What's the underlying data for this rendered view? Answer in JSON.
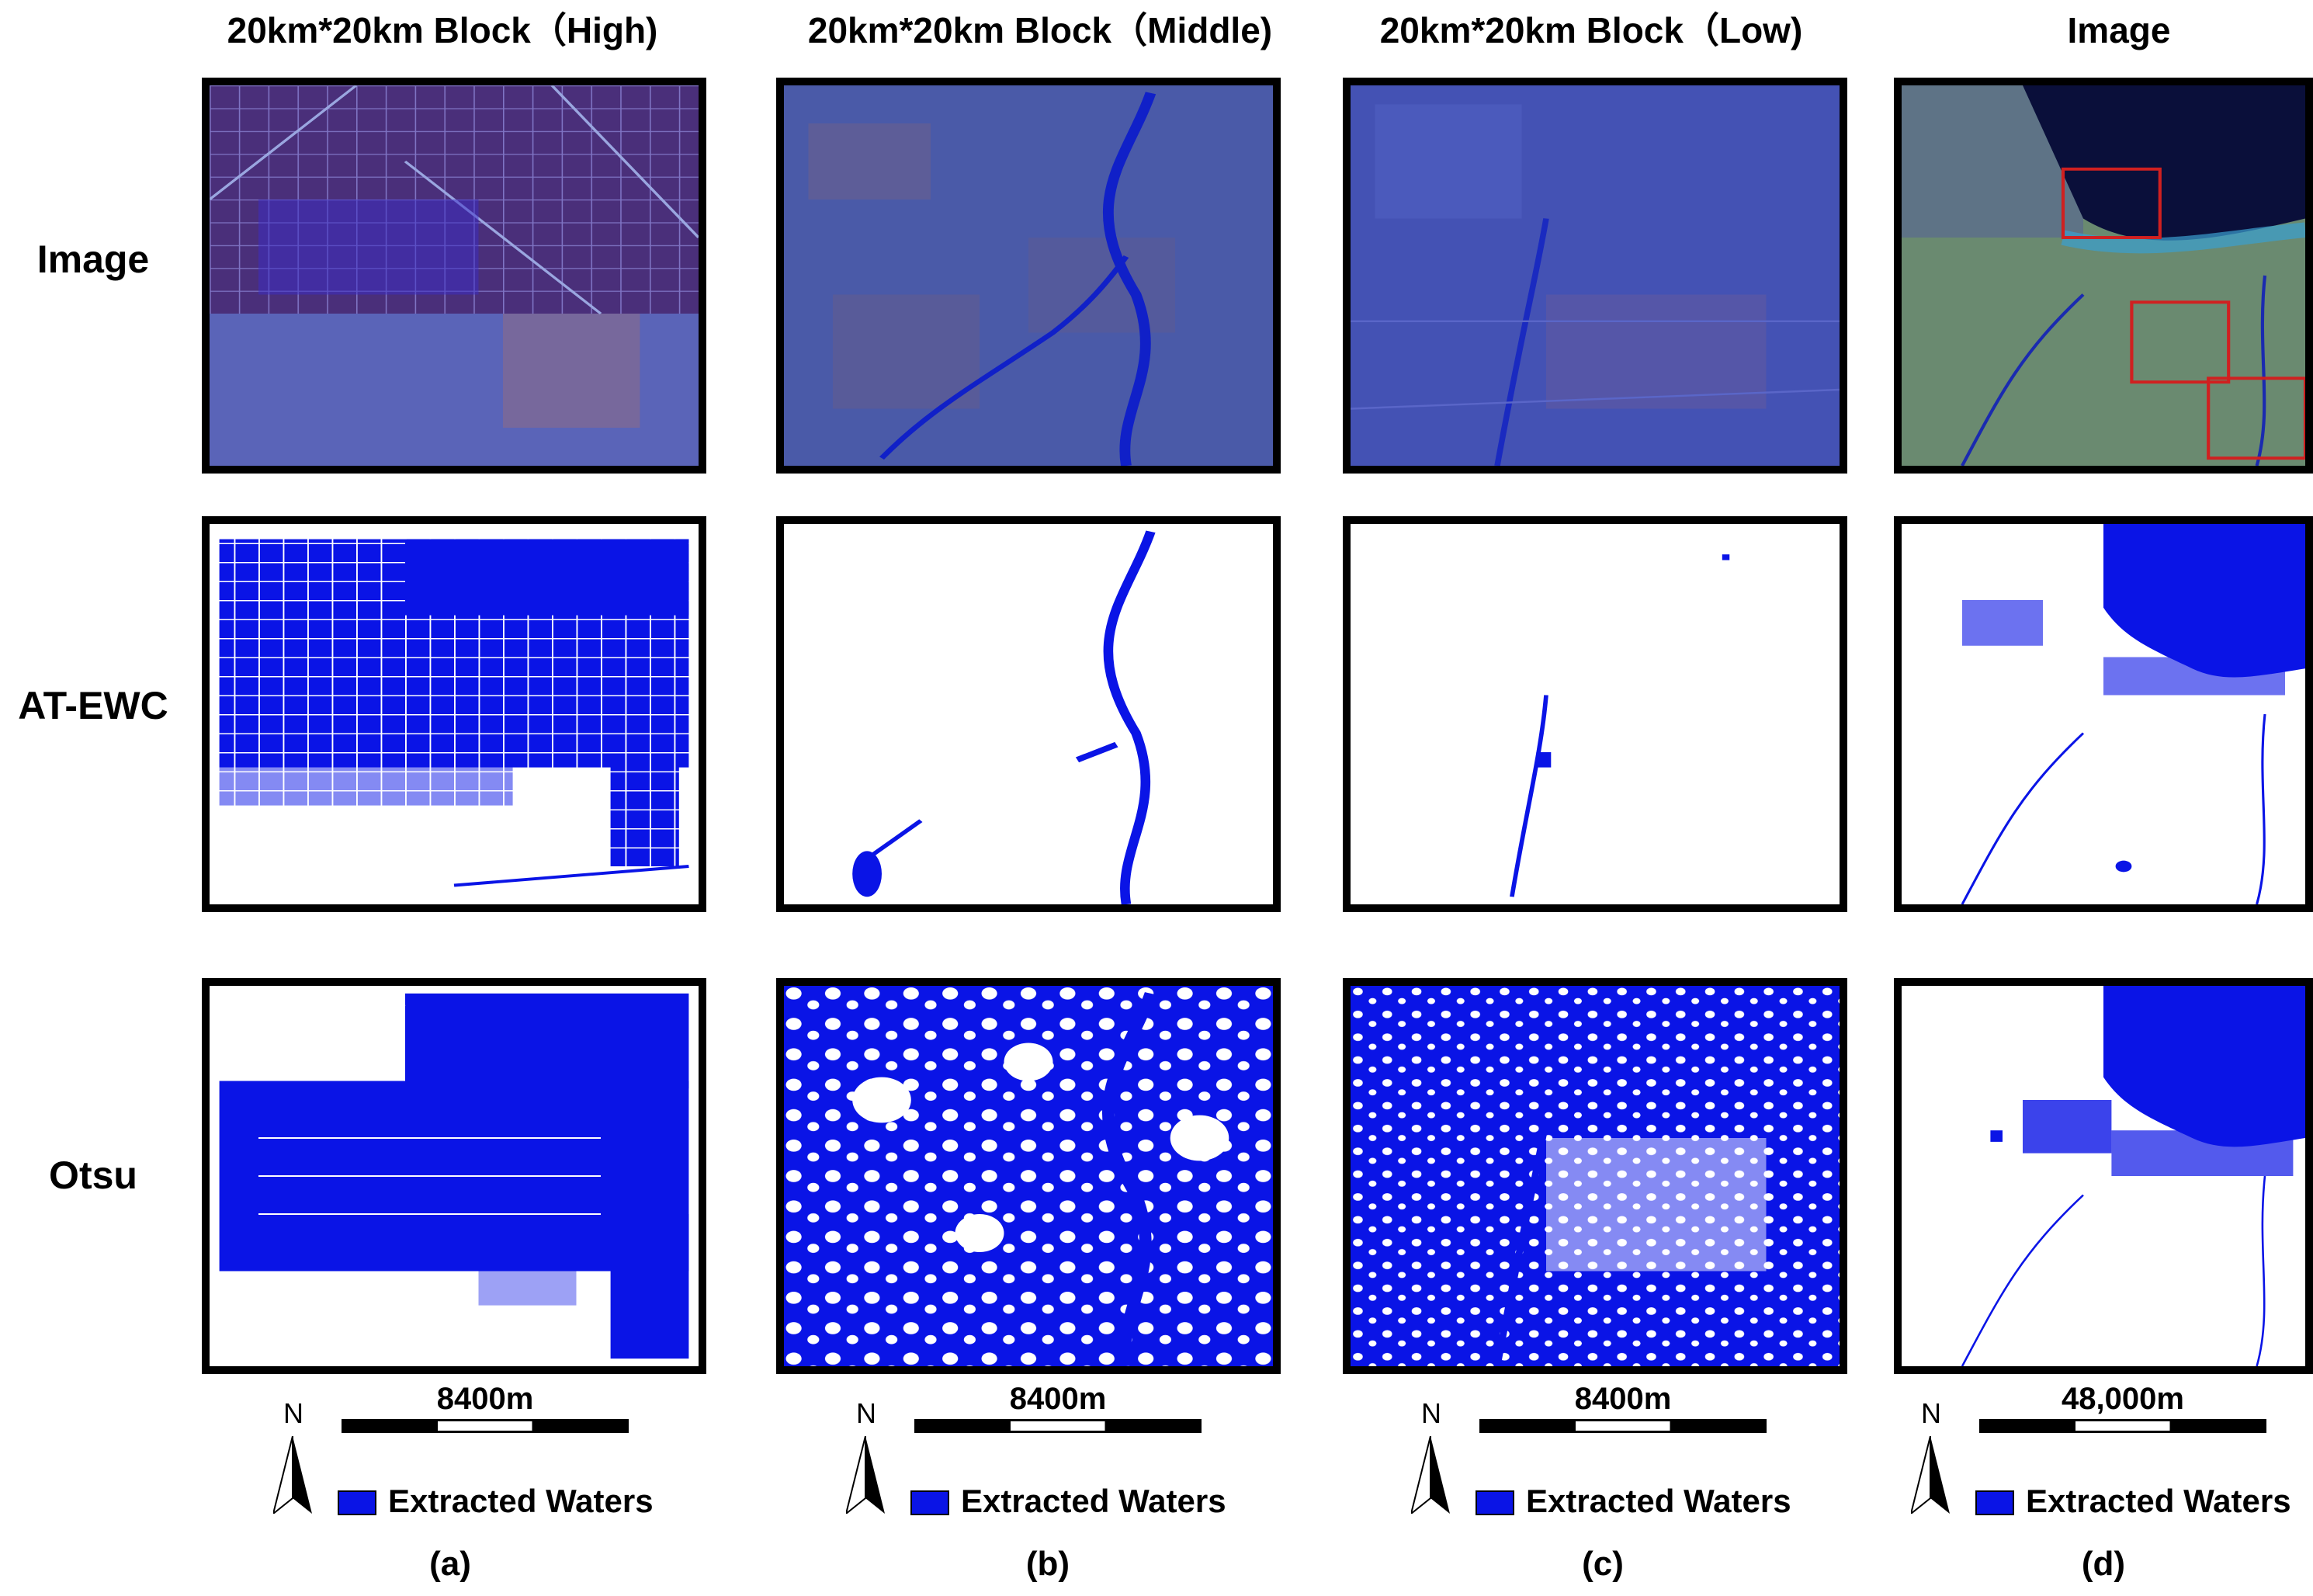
{
  "columns": [
    {
      "title": "20km*20km Block（High)",
      "letter": "(a)",
      "scale": "8400m"
    },
    {
      "title": "20km*20km Block（Middle)",
      "letter": "(b)",
      "scale": "8400m"
    },
    {
      "title": "20km*20km Block（Low)",
      "letter": "(c)",
      "scale": "8400m"
    },
    {
      "title": "Image",
      "letter": "(d)",
      "scale": "48,000m"
    }
  ],
  "rows": [
    {
      "label": "Image"
    },
    {
      "label": "AT-EWC"
    },
    {
      "label": "Otsu"
    }
  ],
  "north_arrow": "N",
  "legend": {
    "label": "Extracted Waters",
    "color": "#0a14e6"
  },
  "colors": {
    "water": "#0a14e6",
    "image_base": "#3d4a9e",
    "highlight_box": "#d02020"
  }
}
